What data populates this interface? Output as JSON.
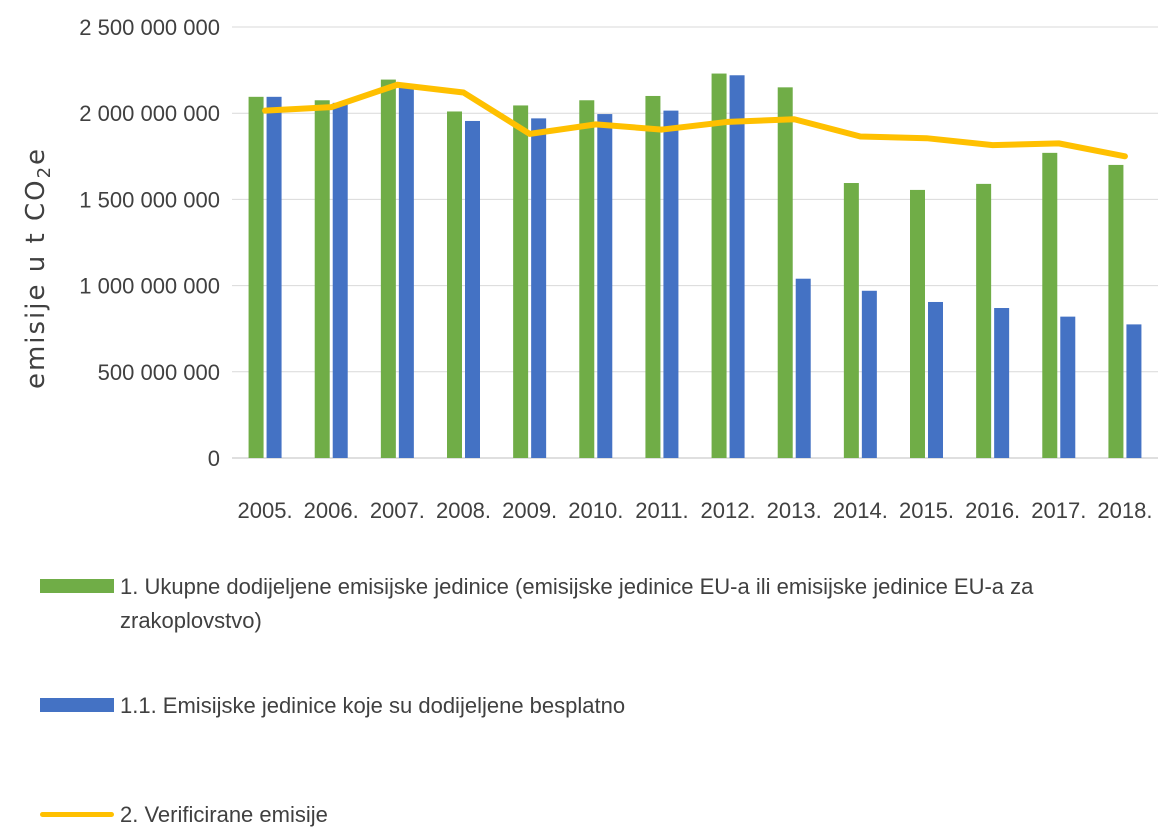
{
  "chart_data": {
    "type": "bar",
    "categories": [
      "2005.",
      "2006.",
      "2007.",
      "2008.",
      "2009.",
      "2010.",
      "2011.",
      "2012.",
      "2013.",
      "2014.",
      "2015.",
      "2016.",
      "2017.",
      "2018."
    ],
    "series": [
      {
        "name": "1. Ukupne dodijeljene emisijske jedinice (emisijske jedinice EU-a ili emisijske jedinice EU-a za zrakoplovstvo)",
        "kind": "bar",
        "color": "#70ad47",
        "values": [
          2095000000,
          2075000000,
          2195000000,
          2010000000,
          2045000000,
          2075000000,
          2100000000,
          2230000000,
          2150000000,
          1595000000,
          1555000000,
          1590000000,
          1770000000,
          1700000000
        ]
      },
      {
        "name": "1.1. Emisijske jedinice koje su dodijeljene besplatno",
        "kind": "bar",
        "color": "#4472c4",
        "values": [
          2095000000,
          2060000000,
          2150000000,
          1955000000,
          1970000000,
          1995000000,
          2015000000,
          2220000000,
          1040000000,
          970000000,
          905000000,
          870000000,
          820000000,
          775000000
        ]
      },
      {
        "name": "2. Verificirane emisije",
        "kind": "line",
        "color": "#ffc000",
        "values": [
          2015000000,
          2035000000,
          2165000000,
          2120000000,
          1880000000,
          1935000000,
          1905000000,
          1950000000,
          1965000000,
          1865000000,
          1855000000,
          1815000000,
          1825000000,
          1750000000
        ]
      }
    ],
    "y_ticks": [
      "0",
      "500 000 000",
      "1 000 000 000",
      "1 500 000 000",
      "2 000 000 000",
      "2 500 000 000"
    ],
    "ylim": [
      0,
      2500000000
    ],
    "ylabel": "emisije u t CO",
    "ylabel_sub": "2",
    "ylabel_tail": "e",
    "grid": true,
    "legend_position": "bottom"
  }
}
